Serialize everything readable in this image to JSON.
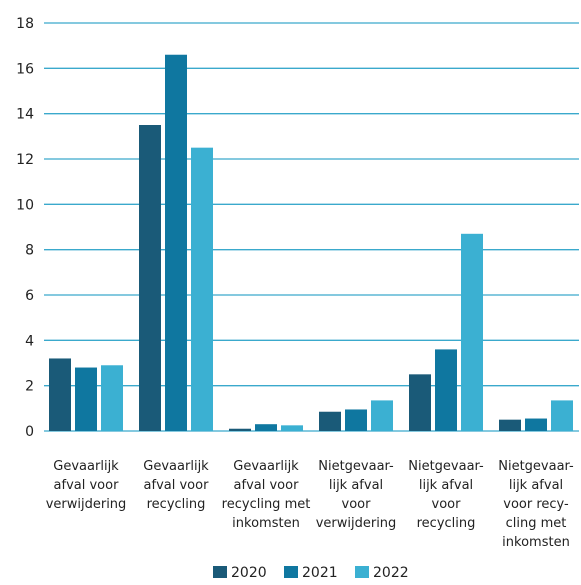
{
  "chart_data": {
    "type": "bar",
    "title": "",
    "xlabel": "",
    "ylabel": "",
    "ylim": [
      0,
      18
    ],
    "yticks": [
      0,
      2,
      4,
      6,
      8,
      10,
      12,
      14,
      16,
      18
    ],
    "grid": true,
    "legend_position": "bottom-center",
    "categories": [
      [
        "Gevaarlijk",
        "afval voor",
        "verwijdering"
      ],
      [
        "Gevaarlijk",
        "afval voor",
        "recycling"
      ],
      [
        "Gevaarlijk",
        "afval voor",
        "recycling met",
        "inkomsten"
      ],
      [
        "Nietgevaar-",
        "lijk afval",
        "voor",
        "verwijdering"
      ],
      [
        "Nietgevaar-",
        "lijk afval",
        "voor",
        "recycling"
      ],
      [
        "Nietgevaar-",
        "lijk afval",
        "voor recy-",
        "cling met",
        "inkomsten"
      ]
    ],
    "series": [
      {
        "name": "2020",
        "color": "#1a5a78",
        "values": [
          3.2,
          13.5,
          0.1,
          0.85,
          2.5,
          0.5
        ]
      },
      {
        "name": "2021",
        "color": "#0f77a0",
        "values": [
          2.8,
          16.6,
          0.3,
          0.95,
          3.6,
          0.55
        ]
      },
      {
        "name": "2022",
        "color": "#3bb0d2",
        "values": [
          2.9,
          12.5,
          0.25,
          1.35,
          8.7,
          1.35
        ]
      }
    ],
    "grid_color": "#3aa9cc"
  }
}
